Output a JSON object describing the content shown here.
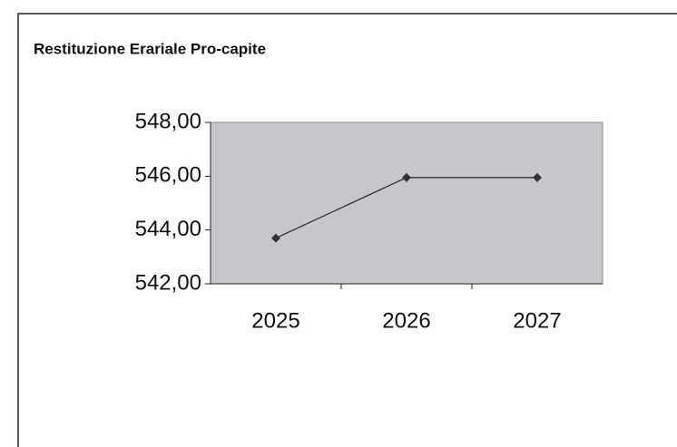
{
  "chart_data": {
    "type": "line",
    "title": "Restituzione Erariale Pro-capite",
    "categories": [
      "2025",
      "2026",
      "2027"
    ],
    "values": [
      543.7,
      545.95,
      545.95
    ],
    "color": "#333333",
    "ylim": [
      542,
      548
    ],
    "yticks": [
      {
        "value": 542,
        "label": "542,00"
      },
      {
        "value": 544,
        "label": "544,00"
      },
      {
        "value": 546,
        "label": "546,00"
      },
      {
        "value": 548,
        "label": "548,00"
      }
    ]
  }
}
